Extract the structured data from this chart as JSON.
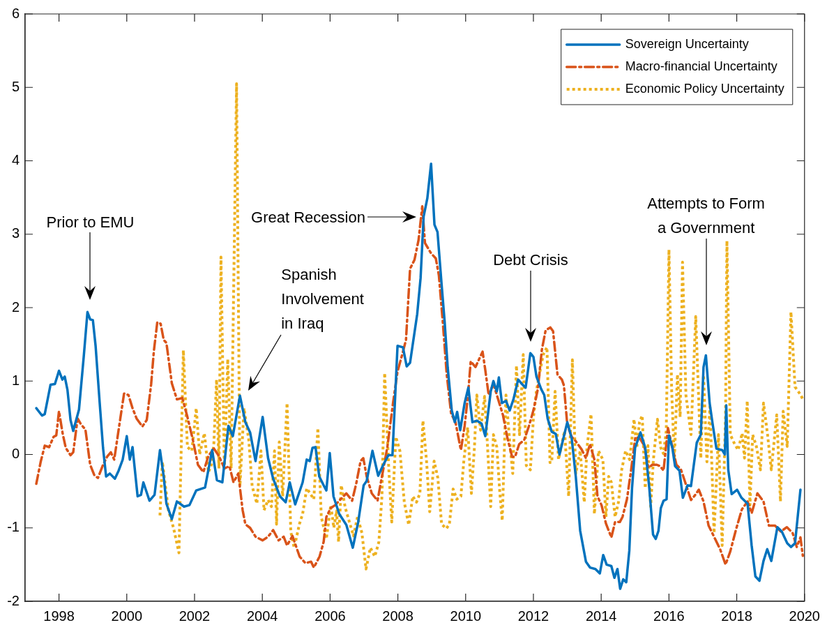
{
  "chart_data": {
    "type": "line",
    "xlim": [
      1997,
      2020
    ],
    "xticks": [
      1998,
      2000,
      2002,
      2004,
      2006,
      2008,
      2010,
      2012,
      2014,
      2016,
      2018,
      2020
    ],
    "ylim": [
      -2,
      6
    ],
    "yticks": [
      -2,
      -1,
      0,
      1,
      2,
      3,
      4,
      5,
      6
    ],
    "grid": false,
    "legend": "top right",
    "series": [
      {
        "name": "Sovereign Uncertainty",
        "color": "#0072bd",
        "line_style": "solid",
        "x": [
          1997.33,
          1997.5,
          1997.58,
          1997.75,
          1997.88,
          1998.0,
          1998.1,
          1998.17,
          1998.25,
          1998.34,
          1998.42,
          1998.59,
          1998.73,
          1998.84,
          1998.92,
          1999.0,
          1999.08,
          1999.2,
          1999.3,
          1999.39,
          1999.5,
          1999.65,
          1999.76,
          1999.88,
          2000.0,
          2000.09,
          2000.17,
          2000.32,
          2000.42,
          2000.49,
          2000.67,
          2000.82,
          2000.98,
          2001.09,
          2001.17,
          2001.33,
          2001.48,
          2001.69,
          2001.85,
          2002.05,
          2002.31,
          2002.52,
          2002.66,
          2002.82,
          2003.0,
          2003.13,
          2003.34,
          2003.5,
          2003.64,
          2003.8,
          2004.01,
          2004.17,
          2004.32,
          2004.52,
          2004.69,
          2004.81,
          2004.97,
          2005.19,
          2005.31,
          2005.4,
          2005.48,
          2005.57,
          2005.68,
          2005.81,
          2005.89,
          2005.99,
          2006.1,
          2006.27,
          2006.48,
          2006.67,
          2006.83,
          2006.99,
          2007.08,
          2007.25,
          2007.42,
          2007.57,
          2007.72,
          2007.84,
          2007.99,
          2008.15,
          2008.26,
          2008.36,
          2008.57,
          2008.67,
          2008.76,
          2008.87,
          2008.98,
          2009.08,
          2009.17,
          2009.29,
          2009.38,
          2009.47,
          2009.59,
          2009.68,
          2009.75,
          2009.84,
          2009.97,
          2010.08,
          2010.2,
          2010.33,
          2010.47,
          2010.58,
          2010.74,
          2010.82,
          2010.92,
          2010.98,
          2011.07,
          2011.19,
          2011.3,
          2011.41,
          2011.55,
          2011.66,
          2011.77,
          2011.91,
          2012.0,
          2012.09,
          2012.23,
          2012.32,
          2012.42,
          2012.54,
          2012.66,
          2012.77,
          2013.0,
          2013.13,
          2013.25,
          2013.38,
          2013.55,
          2013.67,
          2013.83,
          2013.96,
          2014.06,
          2014.16,
          2014.3,
          2014.39,
          2014.48,
          2014.56,
          2014.65,
          2014.74,
          2014.83,
          2014.91,
          2015.0,
          2015.16,
          2015.3,
          2015.42,
          2015.53,
          2015.61,
          2015.69,
          2015.76,
          2015.84,
          2015.93,
          2016.0,
          2016.1,
          2016.18,
          2016.31,
          2016.41,
          2016.55,
          2016.65,
          2016.82,
          2016.94,
          2017.02,
          2017.09,
          2017.2,
          2017.29,
          2017.4,
          2017.57,
          2017.65,
          2017.69,
          2017.75,
          2017.85,
          2018.01,
          2018.14,
          2018.32,
          2018.44,
          2018.55,
          2018.67,
          2018.79,
          2018.9,
          2019.02,
          2019.2,
          2019.33,
          2019.49,
          2019.6,
          2019.72,
          2019.88
        ],
        "values": [
          0.63,
          0.53,
          0.55,
          0.95,
          0.96,
          1.14,
          1.02,
          1.06,
          0.88,
          0.47,
          0.32,
          0.61,
          1.33,
          1.94,
          1.84,
          1.83,
          1.48,
          0.71,
          0.09,
          -0.3,
          -0.26,
          -0.33,
          -0.22,
          -0.07,
          0.25,
          -0.07,
          0.1,
          -0.57,
          -0.55,
          -0.38,
          -0.63,
          -0.55,
          0.06,
          -0.3,
          -0.67,
          -0.88,
          -0.64,
          -0.71,
          -0.69,
          -0.49,
          -0.45,
          0.06,
          -0.35,
          -0.38,
          0.39,
          0.25,
          0.8,
          0.44,
          0.3,
          -0.09,
          0.51,
          -0.05,
          -0.33,
          -0.57,
          -0.65,
          -0.38,
          -0.68,
          -0.38,
          -0.07,
          -0.09,
          0.09,
          0.1,
          -0.3,
          -0.42,
          -0.49,
          0.02,
          -0.57,
          -0.81,
          -0.96,
          -1.27,
          -0.92,
          -0.42,
          -0.36,
          0.05,
          -0.29,
          -0.14,
          -0.01,
          -0.01,
          1.48,
          1.46,
          1.2,
          1.25,
          1.91,
          2.4,
          3.24,
          3.49,
          3.96,
          3.13,
          3.03,
          2.32,
          1.81,
          1.19,
          0.6,
          0.44,
          0.58,
          0.33,
          0.7,
          0.91,
          0.44,
          0.46,
          0.42,
          0.25,
          0.86,
          1.0,
          0.86,
          1.05,
          0.7,
          0.73,
          0.6,
          0.75,
          1.02,
          0.96,
          0.91,
          1.38,
          1.33,
          1.06,
          0.89,
          0.81,
          0.49,
          0.31,
          0.28,
          0.0,
          0.44,
          0.22,
          -0.3,
          -1.04,
          -1.46,
          -1.54,
          -1.56,
          -1.62,
          -1.37,
          -1.5,
          -1.52,
          -1.68,
          -1.56,
          -1.83,
          -1.7,
          -1.74,
          -1.31,
          -0.46,
          0.09,
          0.3,
          0.09,
          -0.46,
          -1.09,
          -1.15,
          -1.04,
          -0.73,
          -0.63,
          -0.61,
          0.26,
          0.09,
          -0.16,
          -0.22,
          -0.59,
          -0.42,
          -0.43,
          0.16,
          0.27,
          1.19,
          1.35,
          0.7,
          0.41,
          0.08,
          0.06,
          0.0,
          0.67,
          -0.21,
          -0.54,
          -0.48,
          -0.59,
          -0.67,
          -1.24,
          -1.66,
          -1.72,
          -1.45,
          -1.29,
          -1.45,
          -0.99,
          -1.05,
          -1.21,
          -1.26,
          -1.21,
          -0.48
        ]
      },
      {
        "name": "Macro-financial Uncertainty",
        "color": "#d95319",
        "line_style": "dashed",
        "x": [
          1997.33,
          1997.46,
          1997.58,
          1997.71,
          1997.84,
          1997.92,
          1998.0,
          1998.11,
          1998.2,
          1998.34,
          1998.42,
          1998.55,
          1998.65,
          1998.78,
          1998.92,
          1999.04,
          1999.15,
          1999.3,
          1999.42,
          1999.53,
          1999.63,
          1999.78,
          1999.92,
          2000.05,
          2000.17,
          2000.29,
          2000.46,
          2000.59,
          2000.72,
          2000.8,
          2000.9,
          2001.0,
          2001.09,
          2001.17,
          2001.33,
          2001.48,
          2001.64,
          2001.79,
          2001.95,
          2002.1,
          2002.26,
          2002.41,
          2002.57,
          2002.72,
          2002.88,
          2003.03,
          2003.15,
          2003.29,
          2003.42,
          2003.5,
          2003.64,
          2003.8,
          2004.01,
          2004.17,
          2004.32,
          2004.48,
          2004.63,
          2004.73,
          2004.89,
          2005.1,
          2005.27,
          2005.44,
          2005.52,
          2005.69,
          2005.81,
          2005.89,
          2006.02,
          2006.15,
          2006.31,
          2006.48,
          2006.65,
          2006.77,
          2006.9,
          2006.98,
          2007.08,
          2007.23,
          2007.4,
          2007.53,
          2007.69,
          2007.86,
          2007.99,
          2008.11,
          2008.24,
          2008.36,
          2008.49,
          2008.61,
          2008.72,
          2008.8,
          2008.98,
          2009.12,
          2009.21,
          2009.33,
          2009.44,
          2009.57,
          2009.7,
          2009.86,
          2009.97,
          2010.07,
          2010.15,
          2010.29,
          2010.37,
          2010.5,
          2010.58,
          2010.68,
          2010.82,
          2010.96,
          2011.1,
          2011.23,
          2011.37,
          2011.46,
          2011.58,
          2011.73,
          2011.87,
          2012.0,
          2012.13,
          2012.25,
          2012.36,
          2012.5,
          2012.58,
          2012.71,
          2012.84,
          2012.9,
          2013.0,
          2013.13,
          2013.25,
          2013.42,
          2013.55,
          2013.67,
          2013.8,
          2013.89,
          2014.01,
          2014.14,
          2014.3,
          2014.41,
          2014.55,
          2014.63,
          2014.76,
          2014.88,
          2015.01,
          2015.14,
          2015.27,
          2015.39,
          2015.51,
          2015.64,
          2015.74,
          2015.84,
          2015.97,
          2016.08,
          2016.22,
          2016.35,
          2016.48,
          2016.65,
          2016.76,
          2016.88,
          2017.02,
          2017.17,
          2017.34,
          2017.51,
          2017.67,
          2017.81,
          2017.98,
          2018.15,
          2018.32,
          2018.44,
          2018.61,
          2018.79,
          2018.95,
          2019.13,
          2019.3,
          2019.48,
          2019.65,
          2019.77,
          2019.88,
          2019.95
        ],
        "values": [
          -0.4,
          -0.1,
          0.12,
          0.1,
          0.24,
          0.26,
          0.59,
          0.28,
          0.09,
          -0.01,
          0.03,
          0.49,
          0.41,
          0.34,
          -0.14,
          -0.28,
          -0.32,
          -0.14,
          -0.03,
          0.03,
          -0.07,
          0.4,
          0.83,
          0.81,
          0.63,
          0.49,
          0.38,
          0.47,
          0.96,
          1.41,
          1.8,
          1.78,
          1.56,
          1.52,
          0.97,
          0.75,
          0.77,
          0.51,
          0.2,
          -0.14,
          -0.24,
          -0.02,
          0.08,
          -0.02,
          -0.19,
          -0.16,
          -0.38,
          -0.26,
          -0.76,
          -0.95,
          -1.0,
          -1.12,
          -1.17,
          -1.12,
          -1.03,
          -1.17,
          -1.12,
          -1.24,
          -1.11,
          -1.39,
          -1.48,
          -1.46,
          -1.54,
          -1.39,
          -1.19,
          -0.85,
          -0.73,
          -0.69,
          -0.61,
          -0.53,
          -0.63,
          -0.4,
          -0.09,
          -0.05,
          -0.3,
          -0.53,
          -0.63,
          -0.3,
          0.1,
          0.71,
          1.13,
          1.33,
          1.56,
          2.53,
          2.65,
          2.92,
          3.38,
          2.88,
          2.74,
          2.67,
          2.44,
          1.78,
          1.1,
          0.56,
          0.44,
          0.06,
          0.39,
          0.81,
          1.27,
          1.19,
          1.27,
          1.4,
          1.15,
          0.81,
          0.96,
          0.75,
          0.54,
          0.23,
          -0.03,
          -0.03,
          0.14,
          0.2,
          0.39,
          0.6,
          0.89,
          1.43,
          1.69,
          1.73,
          1.68,
          1.09,
          1.02,
          0.94,
          0.4,
          0.24,
          0.18,
          0.07,
          -0.05,
          0.14,
          -0.07,
          -0.57,
          -0.69,
          -0.94,
          -1.13,
          -0.92,
          -0.92,
          -0.85,
          -0.61,
          -0.22,
          0.24,
          0.22,
          0.12,
          -0.18,
          -0.14,
          -0.14,
          -0.16,
          -0.22,
          0.36,
          0.14,
          -0.14,
          -0.2,
          -0.38,
          -0.62,
          -0.56,
          -0.48,
          -0.64,
          -0.97,
          -1.13,
          -1.29,
          -1.5,
          -1.32,
          -1.02,
          -0.75,
          -0.64,
          -0.8,
          -0.53,
          -0.64,
          -0.97,
          -0.97,
          -1.05,
          -0.99,
          -1.07,
          -1.26,
          -1.13,
          -1.38
        ]
      },
      {
        "name": "Economic Policy Uncertainty",
        "color": "#edb120",
        "line_style": "dotted",
        "x": [
          2000.98,
          2001.05,
          2001.23,
          2001.38,
          2001.54,
          2001.67,
          2001.79,
          2001.92,
          2002.05,
          2002.15,
          2002.29,
          2002.41,
          2002.5,
          2002.57,
          2002.65,
          2002.72,
          2002.78,
          2002.88,
          2002.98,
          2003.08,
          2003.24,
          2003.34,
          2003.46,
          2003.6,
          2003.7,
          2003.84,
          2003.96,
          2004.05,
          2004.17,
          2004.27,
          2004.36,
          2004.42,
          2004.5,
          2004.6,
          2004.73,
          2004.84,
          2004.94,
          2005.1,
          2005.19,
          2005.31,
          2005.41,
          2005.52,
          2005.64,
          2005.74,
          2005.89,
          2006.02,
          2006.11,
          2006.19,
          2006.25,
          2006.33,
          2006.45,
          2006.57,
          2006.69,
          2006.81,
          2006.94,
          2007.06,
          2007.19,
          2007.32,
          2007.44,
          2007.53,
          2007.61,
          2007.73,
          2007.82,
          2007.94,
          2008.06,
          2008.19,
          2008.32,
          2008.44,
          2008.55,
          2008.65,
          2008.74,
          2008.85,
          2008.94,
          2009.07,
          2009.18,
          2009.29,
          2009.43,
          2009.52,
          2009.63,
          2009.74,
          2009.86,
          2009.95,
          2010.06,
          2010.17,
          2010.26,
          2010.33,
          2010.44,
          2010.56,
          2010.64,
          2010.74,
          2010.82,
          2010.92,
          2011.01,
          2011.08,
          2011.19,
          2011.3,
          2011.39,
          2011.5,
          2011.59,
          2011.7,
          2011.79,
          2011.91,
          2012.0,
          2012.09,
          2012.18,
          2012.29,
          2012.4,
          2012.49,
          2012.54,
          2012.64,
          2012.74,
          2012.92,
          2013.04,
          2013.15,
          2013.25,
          2013.38,
          2013.5,
          2013.58,
          2013.7,
          2013.8,
          2013.92,
          2014.05,
          2014.14,
          2014.22,
          2014.3,
          2014.41,
          2014.51,
          2014.6,
          2014.72,
          2014.84,
          2014.97,
          2015.05,
          2015.13,
          2015.21,
          2015.3,
          2015.38,
          2015.46,
          2015.54,
          2015.66,
          2015.76,
          2015.84,
          2015.92,
          2016.0,
          2016.08,
          2016.16,
          2016.25,
          2016.33,
          2016.4,
          2016.5,
          2016.65,
          2016.79,
          2016.94,
          2017.02,
          2017.12,
          2017.21,
          2017.33,
          2017.46,
          2017.57,
          2017.67,
          2017.71,
          2017.81,
          2017.92,
          2018.04,
          2018.16,
          2018.23,
          2018.31,
          2018.39,
          2018.47,
          2018.58,
          2018.7,
          2018.79,
          2018.91,
          2019.02,
          2019.18,
          2019.29,
          2019.37,
          2019.49,
          2019.6,
          2019.72,
          2019.89,
          2019.95
        ],
        "values": [
          -0.83,
          -0.1,
          -0.76,
          -1.0,
          -1.34,
          1.42,
          0.1,
          0.05,
          0.63,
          0.0,
          0.29,
          -0.24,
          -0.14,
          0.15,
          1.02,
          -0.19,
          2.69,
          -0.19,
          1.3,
          -0.19,
          5.05,
          -0.43,
          0.63,
          0.2,
          -0.43,
          -0.67,
          0.05,
          -0.76,
          -0.62,
          -0.71,
          0.05,
          -0.95,
          0.17,
          -0.57,
          0.7,
          -1.05,
          -1.27,
          -0.94,
          -0.81,
          -0.46,
          -0.53,
          -0.61,
          0.36,
          -0.85,
          -1.15,
          -0.69,
          -1.0,
          -0.77,
          -1.19,
          -0.42,
          -0.73,
          -0.92,
          -1.11,
          -0.85,
          -1.07,
          -1.56,
          -1.27,
          -1.39,
          -1.19,
          -0.57,
          1.11,
          -0.18,
          -0.92,
          0.24,
          0.05,
          -0.65,
          -0.96,
          -0.57,
          -0.65,
          -0.53,
          0.46,
          -0.11,
          -0.78,
          -0.09,
          -0.32,
          -0.95,
          -1.01,
          -0.95,
          -0.47,
          -0.61,
          -0.57,
          -0.07,
          0.37,
          -0.53,
          0.1,
          0.81,
          0.33,
          0.79,
          0.16,
          -0.71,
          0.27,
          0.1,
          -0.53,
          -0.9,
          0.81,
          0.18,
          -0.26,
          1.21,
          0.27,
          1.36,
          -0.15,
          -0.21,
          0.5,
          0.87,
          1.1,
          1.36,
          1.46,
          -0.11,
          -0.11,
          0.86,
          -0.07,
          0.32,
          -0.57,
          1.29,
          -0.26,
          0.05,
          -0.65,
          0.09,
          0.55,
          -0.81,
          0.05,
          -0.07,
          -0.85,
          -0.3,
          -0.38,
          -0.85,
          -0.65,
          -0.22,
          0.05,
          -0.07,
          0.48,
          0.09,
          0.44,
          0.53,
          -0.46,
          0.12,
          -0.71,
          -0.07,
          0.48,
          0.09,
          0.01,
          0.32,
          2.79,
          0.86,
          -0.07,
          1.09,
          0.51,
          2.62,
          0.81,
          0.27,
          1.88,
          -0.05,
          1.08,
          -0.1,
          0.65,
          -1.07,
          0.27,
          -1.24,
          0.54,
          2.91,
          0.27,
          0.16,
          0.06,
          0.29,
          -0.05,
          0.73,
          -0.69,
          0.27,
          0.11,
          -0.21,
          0.7,
          0.27,
          -0.21,
          0.54,
          -0.64,
          0.59,
          0.11,
          1.94,
          0.92,
          0.81,
          0.75
        ]
      }
    ],
    "annotations": [
      "Prior to EMU",
      "Spanish\nInvolvement\nin Iraq",
      "Great Recession",
      "Debt Crisis",
      "Attempts to Form\na Government"
    ]
  }
}
